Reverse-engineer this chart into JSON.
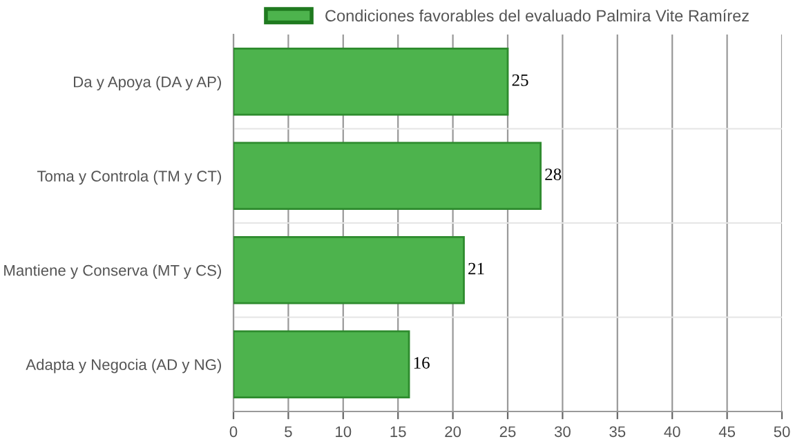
{
  "chart_data": {
    "type": "bar",
    "orientation": "horizontal",
    "categories": [
      "Da y Apoya (DA y AP)",
      "Toma y Controla (TM y CT)",
      "Mantiene y Conserva (MT y CS)",
      "Adapta y Negocia (AD y NG)"
    ],
    "series": [
      {
        "name": "Condiciones favorables del evaluado Palmira Vite Ramírez",
        "color": "#4db34d",
        "values": [
          25,
          28,
          21,
          16
        ]
      }
    ],
    "xlim": [
      0,
      50
    ],
    "xticks": [
      0,
      5,
      10,
      15,
      20,
      25,
      30,
      35,
      40,
      45,
      50
    ],
    "grid": true,
    "legend": "top",
    "data_labels": true
  }
}
